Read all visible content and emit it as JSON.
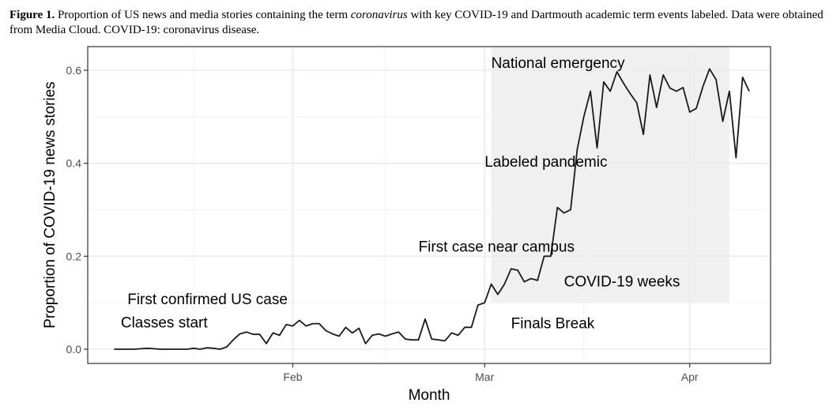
{
  "caption": {
    "label": "Figure 1.",
    "text_before": " Proportion of US news and media stories containing the term ",
    "term": "coronavirus",
    "text_after": " with key COVID-19 and Dartmouth academic term events labeled. Data were obtained from Media Cloud. COVID-19: coronavirus disease."
  },
  "chart_data": {
    "type": "line",
    "xlabel": "Month",
    "ylabel": "Proportion of COVID-19 news stories",
    "ylim": [
      -0.03,
      0.65
    ],
    "xlim": [
      "2020-01-01",
      "2020-04-10"
    ],
    "x_ticks": [
      {
        "date": "2020-02-01",
        "label": "Feb"
      },
      {
        "date": "2020-03-01",
        "label": "Mar"
      },
      {
        "date": "2020-04-01",
        "label": "Apr"
      }
    ],
    "y_ticks": [
      {
        "value": 0.0,
        "label": "0.0"
      },
      {
        "value": 0.2,
        "label": "0.2"
      },
      {
        "value": 0.4,
        "label": "0.4"
      },
      {
        "value": 0.6,
        "label": "0.6"
      }
    ],
    "grid": true,
    "shaded_region": {
      "x_start": "2020-03-02",
      "x_end": "2020-04-07",
      "y_start": 0.1,
      "y_end": 0.65,
      "color": "#f0f0f0"
    },
    "annotations": [
      {
        "text": "Classes start",
        "x": "2020-01-06",
        "y": 0.047
      },
      {
        "text": "First confirmed US case",
        "x": "2020-01-07",
        "y": 0.097
      },
      {
        "text": "First case near campus",
        "x": "2020-02-20",
        "y": 0.21
      },
      {
        "text": "Labeled pandemic",
        "x": "2020-03-01",
        "y": 0.393
      },
      {
        "text": "National emergency",
        "x": "2020-03-02",
        "y": 0.605
      },
      {
        "text": "COVID-19 weeks",
        "x": "2020-03-13",
        "y": 0.135
      },
      {
        "text": "Finals Break",
        "x": "2020-03-05",
        "y": 0.045
      }
    ],
    "series": [
      {
        "color": "#1a1a1a",
        "points": [
          [
            "2020-01-05",
            0.0
          ],
          [
            "2020-01-06",
            0.0
          ],
          [
            "2020-01-07",
            0.0
          ],
          [
            "2020-01-08",
            0.0
          ],
          [
            "2020-01-09",
            0.001
          ],
          [
            "2020-01-10",
            0.002
          ],
          [
            "2020-01-11",
            0.001
          ],
          [
            "2020-01-12",
            0.0
          ],
          [
            "2020-01-13",
            0.0
          ],
          [
            "2020-01-14",
            0.0
          ],
          [
            "2020-01-15",
            0.0
          ],
          [
            "2020-01-16",
            0.0
          ],
          [
            "2020-01-17",
            0.002
          ],
          [
            "2020-01-18",
            0.0
          ],
          [
            "2020-01-19",
            0.003
          ],
          [
            "2020-01-20",
            0.002
          ],
          [
            "2020-01-21",
            0.0
          ],
          [
            "2020-01-22",
            0.005
          ],
          [
            "2020-01-23",
            0.02
          ],
          [
            "2020-01-24",
            0.033
          ],
          [
            "2020-01-25",
            0.037
          ],
          [
            "2020-01-26",
            0.032
          ],
          [
            "2020-01-27",
            0.032
          ],
          [
            "2020-01-28",
            0.012
          ],
          [
            "2020-01-29",
            0.035
          ],
          [
            "2020-01-30",
            0.03
          ],
          [
            "2020-01-31",
            0.053
          ],
          [
            "2020-02-01",
            0.05
          ],
          [
            "2020-02-02",
            0.062
          ],
          [
            "2020-02-03",
            0.05
          ],
          [
            "2020-02-04",
            0.055
          ],
          [
            "2020-02-05",
            0.055
          ],
          [
            "2020-02-06",
            0.04
          ],
          [
            "2020-02-07",
            0.033
          ],
          [
            "2020-02-08",
            0.028
          ],
          [
            "2020-02-09",
            0.047
          ],
          [
            "2020-02-10",
            0.035
          ],
          [
            "2020-02-11",
            0.045
          ],
          [
            "2020-02-12",
            0.012
          ],
          [
            "2020-02-13",
            0.03
          ],
          [
            "2020-02-14",
            0.033
          ],
          [
            "2020-02-15",
            0.028
          ],
          [
            "2020-02-16",
            0.033
          ],
          [
            "2020-02-17",
            0.037
          ],
          [
            "2020-02-18",
            0.022
          ],
          [
            "2020-02-19",
            0.02
          ],
          [
            "2020-02-20",
            0.02
          ],
          [
            "2020-02-21",
            0.065
          ],
          [
            "2020-02-22",
            0.022
          ],
          [
            "2020-02-23",
            0.02
          ],
          [
            "2020-02-24",
            0.018
          ],
          [
            "2020-02-25",
            0.035
          ],
          [
            "2020-02-26",
            0.03
          ],
          [
            "2020-02-27",
            0.047
          ],
          [
            "2020-02-28",
            0.047
          ],
          [
            "2020-02-29",
            0.095
          ],
          [
            "2020-03-01",
            0.1
          ],
          [
            "2020-03-02",
            0.14
          ],
          [
            "2020-03-03",
            0.118
          ],
          [
            "2020-03-04",
            0.14
          ],
          [
            "2020-03-05",
            0.173
          ],
          [
            "2020-03-06",
            0.17
          ],
          [
            "2020-03-07",
            0.145
          ],
          [
            "2020-03-08",
            0.152
          ],
          [
            "2020-03-09",
            0.148
          ],
          [
            "2020-03-10",
            0.2
          ],
          [
            "2020-03-11",
            0.2
          ],
          [
            "2020-03-12",
            0.305
          ],
          [
            "2020-03-13",
            0.293
          ],
          [
            "2020-03-14",
            0.3
          ],
          [
            "2020-03-15",
            0.43
          ],
          [
            "2020-03-16",
            0.5
          ],
          [
            "2020-03-17",
            0.555
          ],
          [
            "2020-03-18",
            0.433
          ],
          [
            "2020-03-19",
            0.575
          ],
          [
            "2020-03-20",
            0.555
          ],
          [
            "2020-03-21",
            0.597
          ],
          [
            "2020-03-22",
            0.572
          ],
          [
            "2020-03-23",
            0.55
          ],
          [
            "2020-03-24",
            0.53
          ],
          [
            "2020-03-25",
            0.462
          ],
          [
            "2020-03-26",
            0.59
          ],
          [
            "2020-03-27",
            0.52
          ],
          [
            "2020-03-28",
            0.59
          ],
          [
            "2020-03-29",
            0.562
          ],
          [
            "2020-03-30",
            0.555
          ],
          [
            "2020-03-31",
            0.563
          ],
          [
            "2020-04-01",
            0.51
          ],
          [
            "2020-04-02",
            0.518
          ],
          [
            "2020-04-03",
            0.565
          ],
          [
            "2020-04-04",
            0.603
          ],
          [
            "2020-04-05",
            0.58
          ],
          [
            "2020-04-06",
            0.49
          ],
          [
            "2020-04-07",
            0.555
          ],
          [
            "2020-04-08",
            0.412
          ],
          [
            "2020-04-09",
            0.585
          ],
          [
            "2020-04-10",
            0.555
          ]
        ]
      }
    ]
  }
}
